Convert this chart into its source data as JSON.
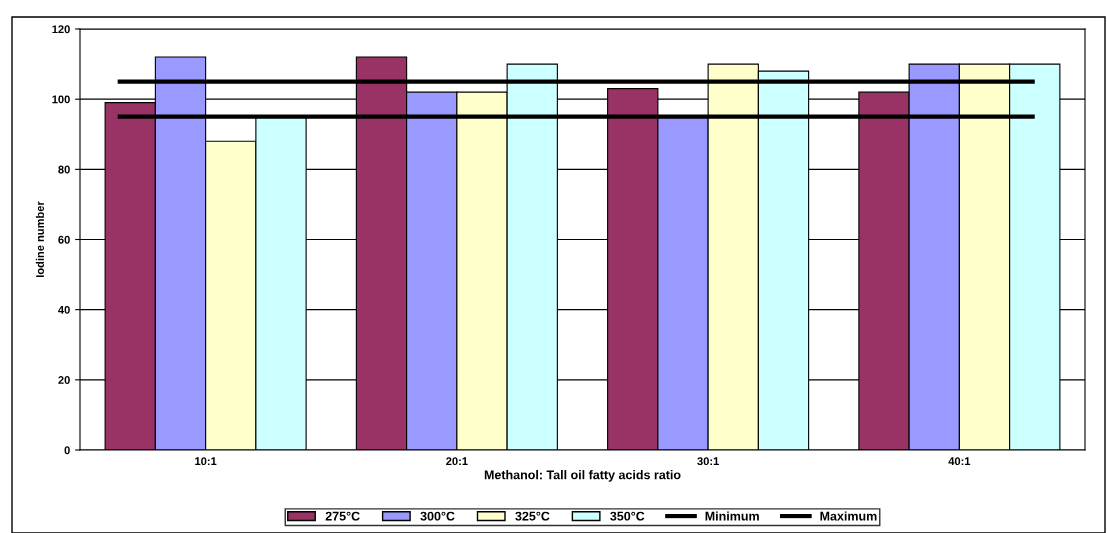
{
  "chart_data": {
    "type": "bar",
    "xlabel": "Methanol: Tall oil fatty acids ratio",
    "ylabel": "Iodine number",
    "categories": [
      "10:1",
      "20:1",
      "30:1",
      "40:1"
    ],
    "series": [
      {
        "name": "275°C",
        "color": "#993366",
        "values": [
          99,
          112,
          103,
          102
        ]
      },
      {
        "name": "300°C",
        "color": "#9999ff",
        "values": [
          112,
          102,
          95,
          110
        ]
      },
      {
        "name": "325°C",
        "color": "#ffffcc",
        "values": [
          88,
          102,
          110,
          110
        ]
      },
      {
        "name": "350°C",
        "color": "#ccffff",
        "values": [
          95,
          110,
          108,
          110
        ]
      }
    ],
    "ref_lines": [
      {
        "axis": "y",
        "value": 95,
        "label": "Minimum",
        "color": "#000000"
      },
      {
        "axis": "y",
        "value": 105,
        "label": "Maximum",
        "color": "#000000"
      }
    ],
    "ylim": [
      0,
      120
    ],
    "yticks": [
      0,
      20,
      40,
      60,
      80,
      100,
      120
    ],
    "grid": "y",
    "legend": "bottom"
  }
}
